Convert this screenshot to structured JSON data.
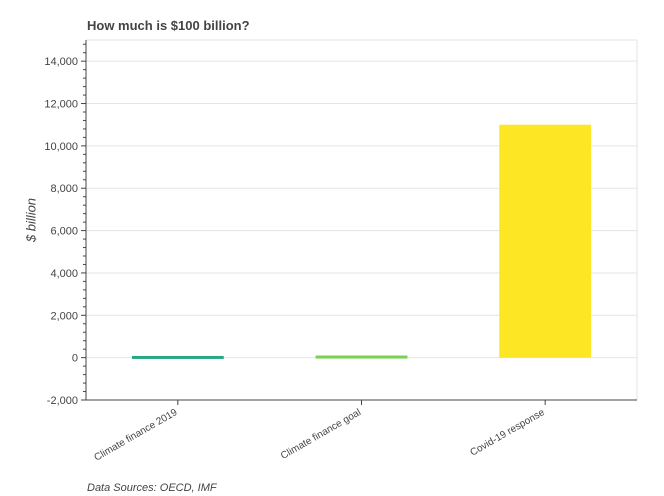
{
  "chart_data": {
    "type": "bar",
    "title": "How much is $100 billion?",
    "ylabel": "$ billion",
    "xlabel": "",
    "categories": [
      "Climate finance 2019",
      "Climate finance goal",
      "Covid-19 response"
    ],
    "values": [
      80,
      100,
      11000
    ],
    "colors": [
      "#2aa884",
      "#7ad151",
      "#fde725"
    ],
    "ylim": [
      -2000,
      15000
    ],
    "yticks": [
      -2000,
      0,
      2000,
      4000,
      6000,
      8000,
      10000,
      12000,
      14000
    ],
    "ytick_labels": [
      "-2,000",
      "0",
      "2,000",
      "4,000",
      "6,000",
      "8,000",
      "10,000",
      "12,000",
      "14,000"
    ],
    "grid": true,
    "source": "Data Sources: OECD, IMF"
  }
}
